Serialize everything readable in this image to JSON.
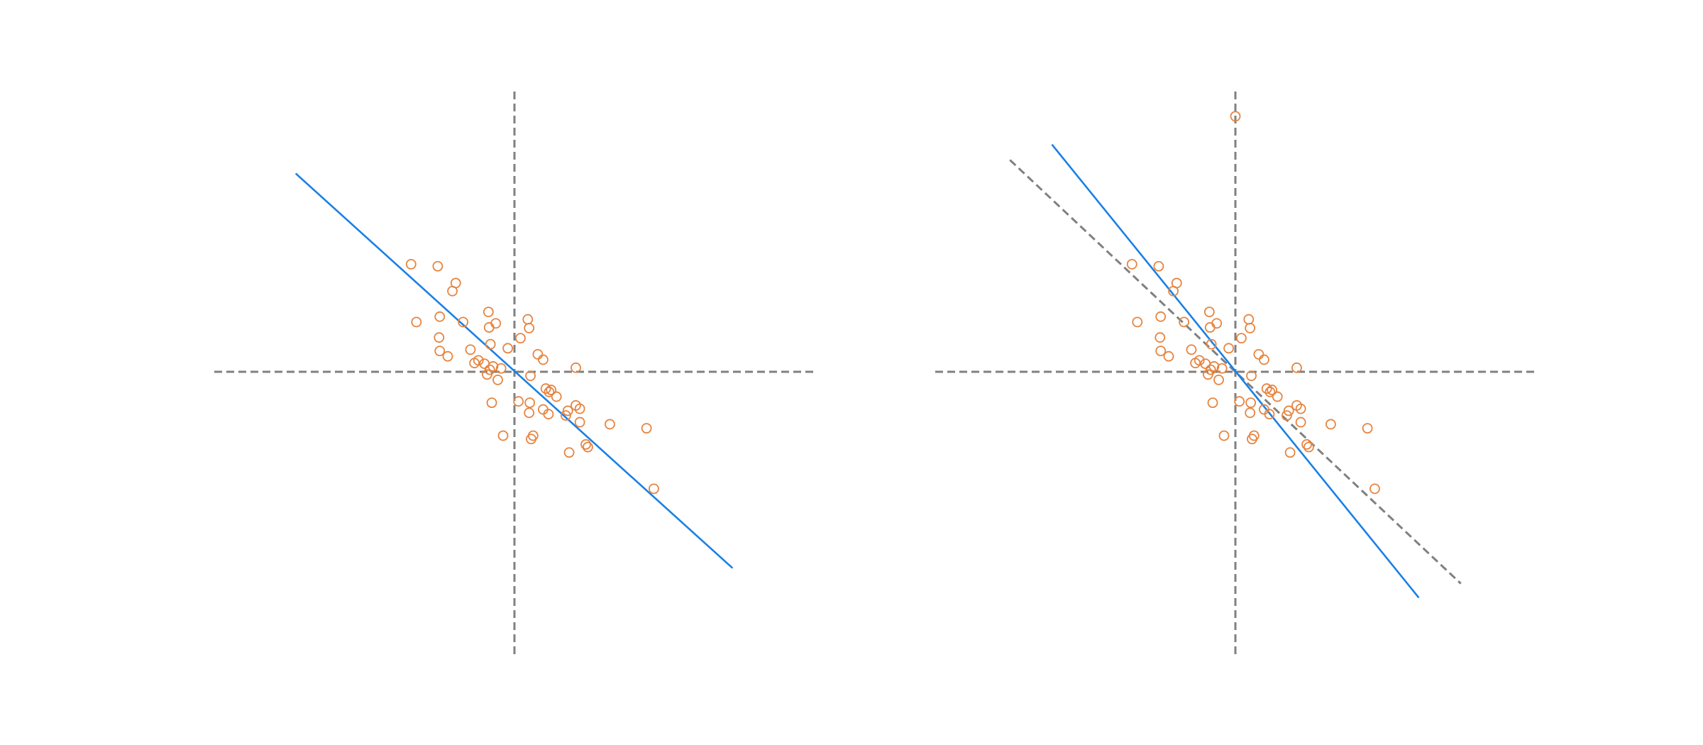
{
  "chart_data": [
    {
      "type": "scatter",
      "title": "",
      "xlabel": "",
      "ylabel": "",
      "xlim": [
        -4.5,
        4.5
      ],
      "ylim": [
        -4.2,
        4.2
      ],
      "grid": false,
      "legend": "none",
      "axes_through_origin": true,
      "colors": {
        "points": "#e6843f",
        "fit_line": "#1a80e6",
        "axes": "#808080"
      },
      "points": [
        [
          -1.55,
          1.6
        ],
        [
          -1.15,
          1.57
        ],
        [
          -0.88,
          1.32
        ],
        [
          -0.93,
          1.2
        ],
        [
          -1.47,
          0.74
        ],
        [
          -1.12,
          0.82
        ],
        [
          -0.77,
          0.74
        ],
        [
          -0.39,
          0.89
        ],
        [
          -0.28,
          0.72
        ],
        [
          -0.38,
          0.66
        ],
        [
          0.2,
          0.78
        ],
        [
          0.22,
          0.65
        ],
        [
          0.09,
          0.5
        ],
        [
          -1.13,
          0.51
        ],
        [
          -0.36,
          0.41
        ],
        [
          -0.1,
          0.35
        ],
        [
          0.35,
          0.26
        ],
        [
          0.43,
          0.18
        ],
        [
          -0.54,
          0.17
        ],
        [
          -0.45,
          0.12
        ],
        [
          -0.6,
          0.13
        ],
        [
          -0.32,
          0.08
        ],
        [
          -0.37,
          0.03
        ],
        [
          -0.2,
          0.05
        ],
        [
          -0.41,
          -0.04
        ],
        [
          -0.25,
          -0.12
        ],
        [
          0.24,
          -0.06
        ],
        [
          0.92,
          0.06
        ],
        [
          -1.12,
          0.31
        ],
        [
          -1.0,
          0.23
        ],
        [
          -0.66,
          0.33
        ],
        [
          0.47,
          -0.25
        ],
        [
          0.55,
          -0.27
        ],
        [
          0.63,
          -0.37
        ],
        [
          0.52,
          -0.3
        ],
        [
          0.06,
          -0.44
        ],
        [
          0.23,
          -0.46
        ],
        [
          0.92,
          -0.5
        ],
        [
          0.98,
          -0.55
        ],
        [
          -0.34,
          -0.46
        ],
        [
          0.43,
          -0.56
        ],
        [
          0.22,
          -0.61
        ],
        [
          0.8,
          -0.58
        ],
        [
          0.51,
          -0.63
        ],
        [
          0.77,
          -0.65
        ],
        [
          0.98,
          -0.75
        ],
        [
          1.43,
          -0.78
        ],
        [
          1.98,
          -0.84
        ],
        [
          0.28,
          -0.95
        ],
        [
          -0.17,
          -0.95
        ],
        [
          0.25,
          -1.0
        ],
        [
          1.07,
          -1.08
        ],
        [
          1.1,
          -1.12
        ],
        [
          0.82,
          -1.2
        ],
        [
          2.09,
          -1.74
        ]
      ],
      "fit_line": {
        "x": [
          -3.28,
          3.27
        ],
        "y": [
          2.95,
          -2.92
        ]
      }
    },
    {
      "type": "scatter",
      "title": "",
      "xlabel": "",
      "ylabel": "",
      "xlim": [
        -4.5,
        4.5
      ],
      "ylim": [
        -4.2,
        4.2
      ],
      "grid": false,
      "legend": "none",
      "axes_through_origin": true,
      "colors": {
        "points": "#e6843f",
        "fit_line": "#1a80e6",
        "reference_line": "#808080",
        "axes": "#808080"
      },
      "points": [
        [
          -1.55,
          1.6
        ],
        [
          -1.15,
          1.57
        ],
        [
          -0.88,
          1.32
        ],
        [
          -0.93,
          1.2
        ],
        [
          -1.47,
          0.74
        ],
        [
          -1.12,
          0.82
        ],
        [
          -0.77,
          0.74
        ],
        [
          -0.39,
          0.89
        ],
        [
          -0.28,
          0.72
        ],
        [
          -0.38,
          0.66
        ],
        [
          0.2,
          0.78
        ],
        [
          0.22,
          0.65
        ],
        [
          0.09,
          0.5
        ],
        [
          -1.13,
          0.51
        ],
        [
          -0.36,
          0.41
        ],
        [
          -0.1,
          0.35
        ],
        [
          0.35,
          0.26
        ],
        [
          0.43,
          0.18
        ],
        [
          -0.54,
          0.17
        ],
        [
          -0.45,
          0.12
        ],
        [
          -0.6,
          0.13
        ],
        [
          -0.32,
          0.08
        ],
        [
          -0.37,
          0.03
        ],
        [
          -0.2,
          0.05
        ],
        [
          -0.41,
          -0.04
        ],
        [
          -0.25,
          -0.12
        ],
        [
          0.24,
          -0.06
        ],
        [
          0.92,
          0.06
        ],
        [
          -1.12,
          0.31
        ],
        [
          -1.0,
          0.23
        ],
        [
          -0.66,
          0.33
        ],
        [
          0.47,
          -0.25
        ],
        [
          0.55,
          -0.27
        ],
        [
          0.63,
          -0.37
        ],
        [
          0.52,
          -0.3
        ],
        [
          0.06,
          -0.44
        ],
        [
          0.23,
          -0.46
        ],
        [
          0.92,
          -0.5
        ],
        [
          0.98,
          -0.55
        ],
        [
          -0.34,
          -0.46
        ],
        [
          0.43,
          -0.56
        ],
        [
          0.22,
          -0.61
        ],
        [
          0.8,
          -0.58
        ],
        [
          0.51,
          -0.63
        ],
        [
          0.77,
          -0.65
        ],
        [
          0.98,
          -0.75
        ],
        [
          1.43,
          -0.78
        ],
        [
          1.98,
          -0.84
        ],
        [
          0.28,
          -0.95
        ],
        [
          -0.17,
          -0.95
        ],
        [
          0.25,
          -1.0
        ],
        [
          1.07,
          -1.08
        ],
        [
          1.1,
          -1.12
        ],
        [
          0.82,
          -1.2
        ],
        [
          2.09,
          -1.74
        ],
        [
          0.0,
          3.8
        ]
      ],
      "fit_line": {
        "x": [
          -2.75,
          2.75
        ],
        "y": [
          3.38,
          -3.36
        ]
      },
      "reference_line": {
        "x": [
          -3.38,
          3.38
        ],
        "y": [
          3.15,
          -3.15
        ]
      }
    }
  ]
}
